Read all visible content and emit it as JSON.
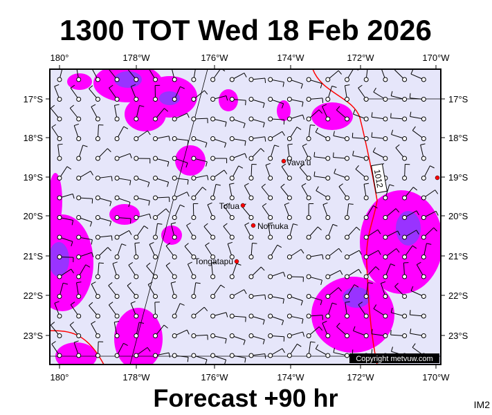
{
  "title": "1300 TOT Wed 18 Feb 2026",
  "footer": "Forecast +90 hr",
  "corner_label": "IM2",
  "copyright": "Copyright metvuw.com",
  "isobar_label": "1012",
  "longitude_labels": [
    "180°",
    "178°W",
    "176°W",
    "174°W",
    "172°W",
    "170°W"
  ],
  "latitude_labels": [
    "17°S",
    "18°S",
    "19°S",
    "20°S",
    "21°S",
    "22°S",
    "23°S"
  ],
  "places": [
    "Vava'u",
    "Tofua",
    "Nomuka",
    "Tongatapu"
  ]
}
